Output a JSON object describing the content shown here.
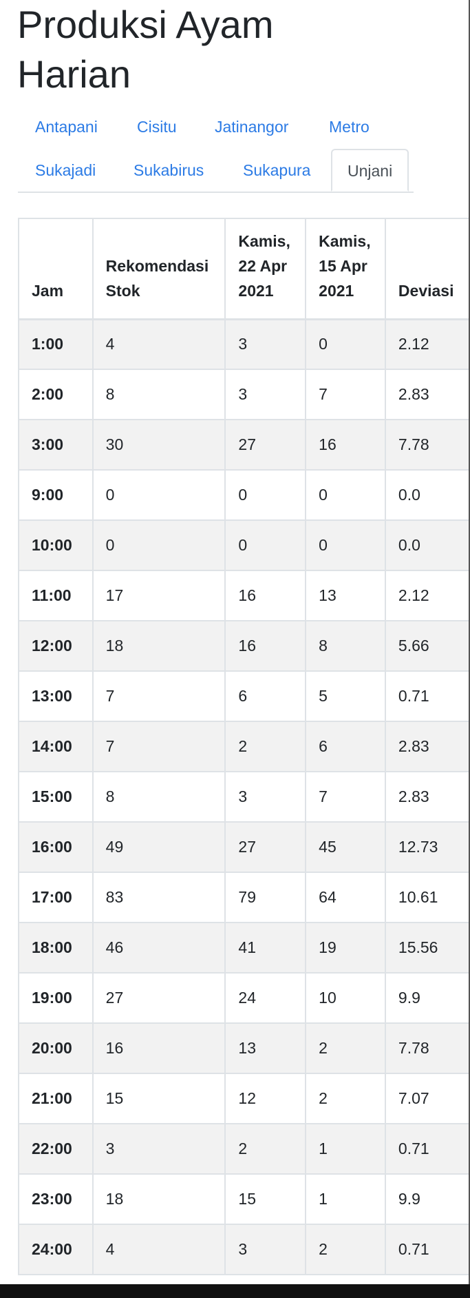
{
  "page": {
    "title_line1": "Produksi Ayam",
    "title_line2": "Harian"
  },
  "tabs": [
    {
      "label": "Antapani"
    },
    {
      "label": "Cisitu"
    },
    {
      "label": "Jatinangor"
    },
    {
      "label": "Metro"
    },
    {
      "label": "Sukajadi"
    },
    {
      "label": "Sukabirus"
    },
    {
      "label": "Sukapura"
    },
    {
      "label": "Unjani",
      "active": true
    }
  ],
  "table": {
    "headers": {
      "jam": "Jam",
      "rekomendasi_1": "Rekomendasi",
      "rekomendasi_2": "Stok",
      "date1_1": "Kamis,",
      "date1_2": "22 Apr",
      "date1_3": "2021",
      "date2_1": "Kamis,",
      "date2_2": "15 Apr",
      "date2_3": "2021",
      "deviasi": "Deviasi"
    },
    "rows": [
      [
        "1:00",
        "4",
        "3",
        "0",
        "2.12"
      ],
      [
        "2:00",
        "8",
        "3",
        "7",
        "2.83"
      ],
      [
        "3:00",
        "30",
        "27",
        "16",
        "7.78"
      ],
      [
        "9:00",
        "0",
        "0",
        "0",
        "0.0"
      ],
      [
        "10:00",
        "0",
        "0",
        "0",
        "0.0"
      ],
      [
        "11:00",
        "17",
        "16",
        "13",
        "2.12"
      ],
      [
        "12:00",
        "18",
        "16",
        "8",
        "5.66"
      ],
      [
        "13:00",
        "7",
        "6",
        "5",
        "0.71"
      ],
      [
        "14:00",
        "7",
        "2",
        "6",
        "2.83"
      ],
      [
        "15:00",
        "8",
        "3",
        "7",
        "2.83"
      ],
      [
        "16:00",
        "49",
        "27",
        "45",
        "12.73"
      ],
      [
        "17:00",
        "83",
        "79",
        "64",
        "10.61"
      ],
      [
        "18:00",
        "46",
        "41",
        "19",
        "15.56"
      ],
      [
        "19:00",
        "27",
        "24",
        "10",
        "9.9"
      ],
      [
        "20:00",
        "16",
        "13",
        "2",
        "7.78"
      ],
      [
        "21:00",
        "15",
        "12",
        "2",
        "7.07"
      ],
      [
        "22:00",
        "3",
        "2",
        "1",
        "0.71"
      ],
      [
        "23:00",
        "18",
        "15",
        "1",
        "9.9"
      ],
      [
        "24:00",
        "4",
        "3",
        "2",
        "0.71"
      ]
    ]
  }
}
